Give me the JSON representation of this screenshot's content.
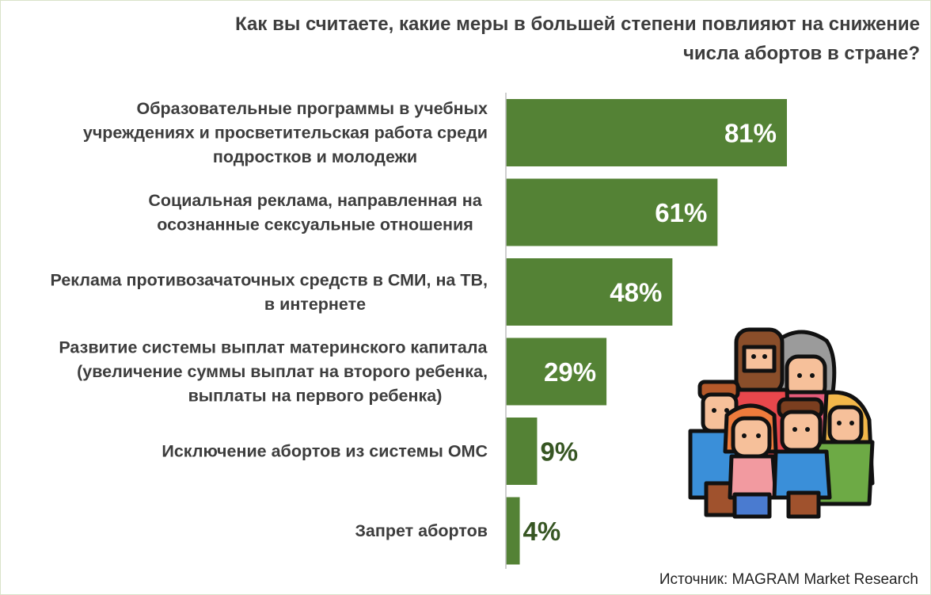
{
  "title_lines": [
    "Как вы считаете, какие меры в большей степени повлияют на снижение",
    "числа абортов в стране?"
  ],
  "source": "Источник: MAGRAM Market Research",
  "colors": {
    "bar": "#548235",
    "label_inside": "#ffffff",
    "label_outside": "#375623",
    "category_text": "#3d3d3d",
    "axis": "#bfbfbf"
  },
  "illustration_icon": "family-icon",
  "chart_data": {
    "type": "bar",
    "orientation": "horizontal",
    "title": "Как вы считаете, какие меры в большей степени повлияют на снижение числа абортов в стране?",
    "unit": "%",
    "xlim": [
      0,
      100
    ],
    "categories": [
      [
        "Образовательные программы в учебных",
        "учреждениях и просветительская работа среди",
        "подростков и молодежи"
      ],
      [
        "Социальная реклама, направленная на",
        "осознанные сексуальные отношения"
      ],
      [
        "Реклама противозачаточных средств в СМИ, на ТВ,",
        "в интернете"
      ],
      [
        "Развитие системы выплат материнского капитала",
        "(увеличение суммы выплат на второго ребенка,",
        "выплаты на первого ребенка)"
      ],
      [
        "Исключение абортов из системы ОМС"
      ],
      [
        "Запрет абортов"
      ]
    ],
    "values": [
      81,
      61,
      48,
      29,
      9,
      4
    ],
    "value_labels": [
      "81%",
      "61%",
      "48%",
      "29%",
      "9%",
      "4%"
    ]
  }
}
